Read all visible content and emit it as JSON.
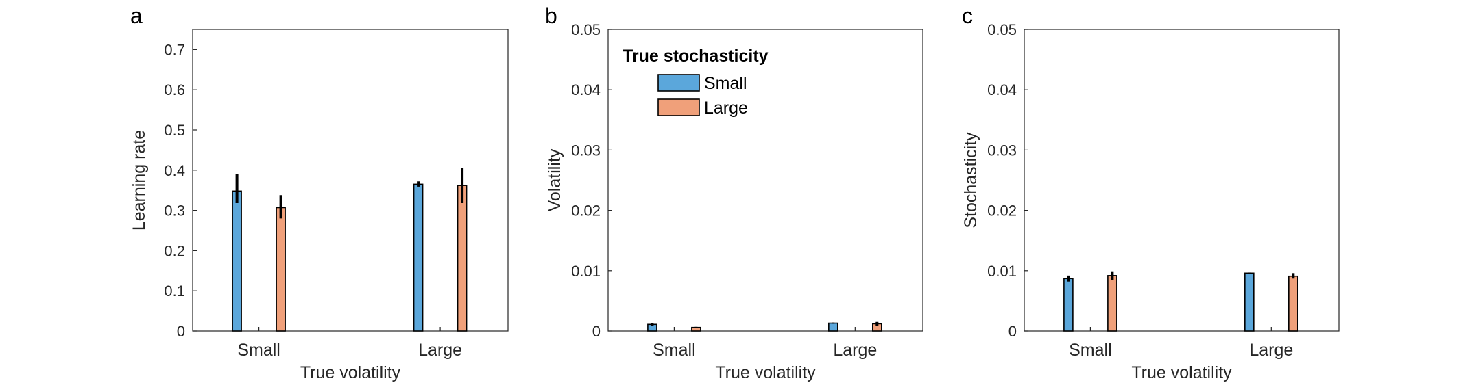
{
  "colors": {
    "small": "#5BA7DB",
    "large": "#F0A07A",
    "errorbar": "#000000",
    "axis": "#262626"
  },
  "legend": {
    "title": "True stochasticity",
    "entries": [
      "Small",
      "Large"
    ],
    "placement": "top-left",
    "panel": 1
  },
  "chart_data": [
    {
      "type": "bar",
      "panel_label": "a",
      "categories": [
        "Small",
        "Large"
      ],
      "xlabel": "True volatility",
      "ylabel": "Learning rate",
      "ylim": [
        0,
        0.75
      ],
      "yticks": [
        "0",
        "0.1",
        "0.2",
        "0.3",
        "0.4",
        "0.5",
        "0.6",
        "0.7"
      ],
      "series": [
        {
          "name": "Small",
          "values": [
            0.348,
            0.365
          ],
          "err_low": [
            0.318,
            0.359
          ],
          "err_high": [
            0.39,
            0.372
          ]
        },
        {
          "name": "Large",
          "values": [
            0.307,
            0.362
          ],
          "err_low": [
            0.28,
            0.318
          ],
          "err_high": [
            0.338,
            0.406
          ]
        }
      ]
    },
    {
      "type": "bar",
      "panel_label": "b",
      "categories": [
        "Small",
        "Large"
      ],
      "xlabel": "True volatility",
      "ylabel": "Volatility",
      "ylim": [
        0,
        0.05
      ],
      "yticks": [
        "0",
        "0.01",
        "0.02",
        "0.03",
        "0.04",
        "0.05"
      ],
      "series": [
        {
          "name": "Small",
          "values": [
            0.0011,
            0.0013
          ],
          "err_low": [
            0.0009,
            0.0012
          ],
          "err_high": [
            0.0013,
            0.0014
          ]
        },
        {
          "name": "Large",
          "values": [
            0.0006,
            0.0012
          ],
          "err_low": [
            0.0005,
            0.0009
          ],
          "err_high": [
            0.0007,
            0.0015
          ]
        }
      ]
    },
    {
      "type": "bar",
      "panel_label": "c",
      "categories": [
        "Small",
        "Large"
      ],
      "xlabel": "True volatility",
      "ylabel": "Stochasticity",
      "ylim": [
        0,
        0.05
      ],
      "yticks": [
        "0",
        "0.01",
        "0.02",
        "0.03",
        "0.04",
        "0.05"
      ],
      "series": [
        {
          "name": "Small",
          "values": [
            0.0087,
            0.0096
          ],
          "err_low": [
            0.0082,
            0.0095
          ],
          "err_high": [
            0.0092,
            0.0097
          ]
        },
        {
          "name": "Large",
          "values": [
            0.0092,
            0.0091
          ],
          "err_low": [
            0.0085,
            0.0087
          ],
          "err_high": [
            0.0099,
            0.0096
          ]
        }
      ]
    }
  ]
}
